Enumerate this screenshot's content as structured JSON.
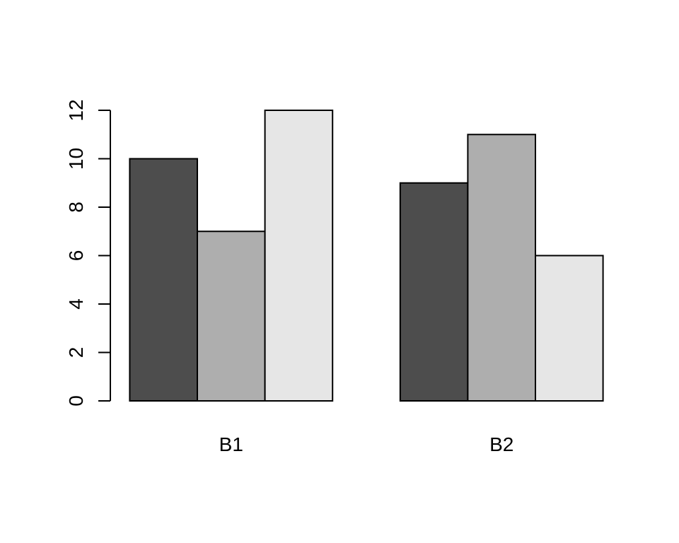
{
  "chart_data": {
    "type": "bar",
    "title": "",
    "xlabel": "",
    "ylabel": "",
    "categories": [
      "B1",
      "B2"
    ],
    "series": [
      {
        "name": "dark-gray",
        "color": "#4D4D4D",
        "values": [
          10,
          9
        ]
      },
      {
        "name": "medium-gray",
        "color": "#AEAEAE",
        "values": [
          7,
          11
        ]
      },
      {
        "name": "light-gray",
        "color": "#E6E6E6",
        "values": [
          12,
          6
        ]
      }
    ],
    "ylim": [
      0,
      12
    ],
    "yticks": [
      0,
      2,
      4,
      6,
      8,
      10,
      12
    ],
    "grid": "off",
    "legend": "none",
    "bar_border_color": "#000000",
    "axis_color": "#000000",
    "background_color": "#FFFFFF"
  }
}
